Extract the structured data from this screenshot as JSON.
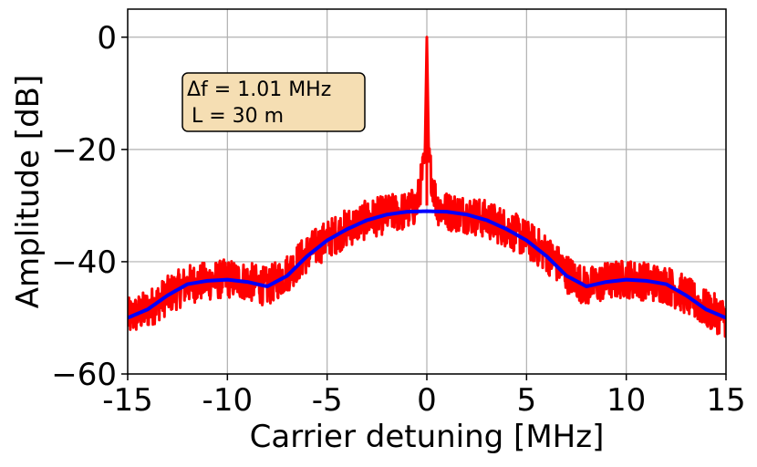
{
  "chart_data": {
    "type": "line",
    "title": "",
    "xlabel": "Carrier detuning [MHz]",
    "ylabel": "Amplitude [dB]",
    "xlim": [
      -15,
      15
    ],
    "ylim": [
      -60,
      5
    ],
    "grid": true,
    "x_ticks": [
      -15,
      -10,
      -5,
      0,
      5,
      10,
      15
    ],
    "x_tick_labels": [
      "-15",
      "-10",
      "-5",
      "0",
      "5",
      "10",
      "15"
    ],
    "y_ticks": [
      -60,
      -40,
      -20,
      0
    ],
    "y_tick_labels": [
      "−60",
      "−40",
      "−20",
      "0"
    ],
    "annotation": {
      "line1": "Δf = 1.01 MHz",
      "line2": "L = 30 m",
      "background": "#f5deb3"
    },
    "series": [
      {
        "color": "#ff0000",
        "style": "noisy measured spectrum",
        "x": [
          -15,
          -14,
          -13,
          -12,
          -11,
          -10,
          -9,
          -8,
          -7,
          -6,
          -5,
          -4,
          -3,
          -2,
          -1,
          -0.5,
          -0.1,
          0,
          0.1,
          0.5,
          1,
          2,
          3,
          4,
          5,
          6,
          7,
          8,
          9,
          10,
          11,
          12,
          13,
          14,
          15
        ],
        "y": [
          -50,
          -48.5,
          -46,
          -44,
          -43.5,
          -43,
          -43.5,
          -44.5,
          -42,
          -38.5,
          -36,
          -34,
          -32.5,
          -31.5,
          -31,
          -30,
          -22,
          0,
          -22,
          -30,
          -31,
          -31.5,
          -32.5,
          -34,
          -36,
          -38.5,
          -42,
          -44.5,
          -43.5,
          -43,
          -43.5,
          -44,
          -46,
          -48.5,
          -50
        ]
      },
      {
        "color": "#0000ff",
        "style": "smooth fit",
        "x": [
          -15,
          -14,
          -13,
          -12,
          -11,
          -10,
          -9,
          -8,
          -7,
          -6,
          -5,
          -4,
          -3,
          -2,
          -1,
          0,
          1,
          2,
          3,
          4,
          5,
          6,
          7,
          8,
          9,
          10,
          11,
          12,
          13,
          14,
          15
        ],
        "y": [
          -50,
          -48.5,
          -46,
          -44,
          -43.4,
          -43.2,
          -43.6,
          -44.4,
          -42.5,
          -39,
          -36.2,
          -34.2,
          -32.6,
          -31.6,
          -31.1,
          -31,
          -31.1,
          -31.6,
          -32.6,
          -34.2,
          -36.2,
          -39,
          -42.5,
          -44.4,
          -43.6,
          -43.2,
          -43.4,
          -44,
          -46,
          -48.5,
          -50
        ]
      }
    ],
    "colors": {
      "grid": "#b0b0b0",
      "axis": "#000000"
    }
  }
}
